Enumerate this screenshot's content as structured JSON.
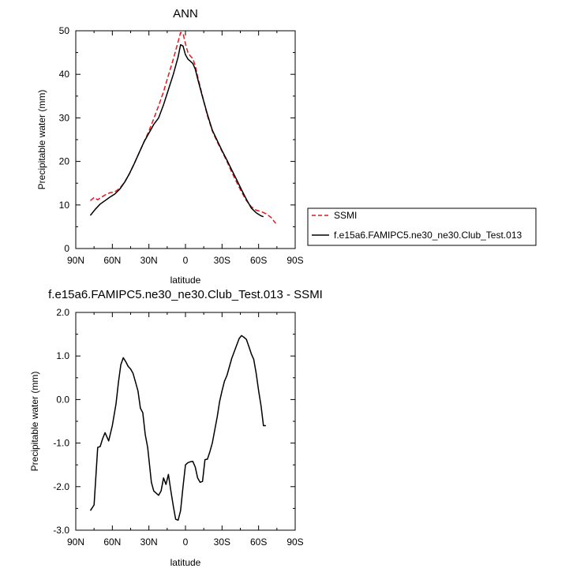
{
  "chart_data": [
    {
      "type": "line",
      "title": "ANN",
      "xlabel": "latitude",
      "ylabel": "Precipitable water (mm)",
      "xlim": [
        -90,
        90
      ],
      "ylim": [
        0,
        50
      ],
      "x_ticks": [
        -90,
        -60,
        -30,
        0,
        30,
        60,
        90
      ],
      "x_tick_labels": [
        "90N",
        "60N",
        "30N",
        "0",
        "30S",
        "60S",
        "90S"
      ],
      "y_ticks": [
        0,
        10,
        20,
        30,
        40,
        50
      ],
      "y_tick_labels": [
        "0",
        "10",
        "20",
        "30",
        "40",
        "50"
      ],
      "grid": false,
      "legend_position": "right",
      "series": [
        {
          "name": "SSMI",
          "color": "#e8161c",
          "dash": "dashed",
          "x": [
            -78,
            -75,
            -72,
            -70,
            -66,
            -62,
            -58,
            -54,
            -50,
            -46,
            -42,
            -38,
            -34,
            -30,
            -26,
            -22,
            -18,
            -14,
            -10,
            -6,
            -4,
            -2,
            0,
            2,
            4,
            6,
            8,
            10,
            14,
            18,
            22,
            26,
            30,
            34,
            38,
            42,
            46,
            50,
            54,
            58,
            62,
            66,
            70,
            74
          ],
          "y": [
            11.0,
            11.7,
            11.2,
            11.6,
            12.3,
            12.8,
            13.0,
            13.8,
            15.2,
            17.2,
            19.5,
            22.0,
            24.5,
            27.0,
            29.8,
            32.8,
            36.0,
            39.8,
            43.5,
            47.5,
            49.6,
            49.4,
            47.0,
            45.0,
            44.2,
            43.6,
            42.0,
            39.5,
            35.0,
            30.5,
            27.0,
            24.5,
            22.3,
            20.0,
            17.5,
            15.2,
            13.0,
            11.0,
            9.6,
            8.8,
            8.5,
            8.0,
            7.2,
            5.8
          ]
        },
        {
          "name": "f.e15a6.FAMIPC5.ne30_ne30.Club_Test.013",
          "color": "#000000",
          "dash": "solid",
          "x": [
            -78,
            -74,
            -70,
            -66,
            -62,
            -58,
            -54,
            -50,
            -46,
            -42,
            -38,
            -34,
            -30,
            -26,
            -22,
            -18,
            -14,
            -10,
            -6,
            -4,
            -2,
            0,
            2,
            4,
            6,
            8,
            10,
            14,
            18,
            22,
            26,
            30,
            34,
            38,
            42,
            46,
            50,
            54,
            58,
            62,
            64
          ],
          "y": [
            7.6,
            9.0,
            10.2,
            11.0,
            11.8,
            12.5,
            13.6,
            15.2,
            17.2,
            19.5,
            22.0,
            24.5,
            26.5,
            28.5,
            30.0,
            33.0,
            36.5,
            40.0,
            44.0,
            46.8,
            46.5,
            44.5,
            43.5,
            43.0,
            42.5,
            41.2,
            39.0,
            34.8,
            30.8,
            27.2,
            24.8,
            22.5,
            20.3,
            18.0,
            15.8,
            13.5,
            11.3,
            9.3,
            8.2,
            7.5,
            7.3
          ]
        }
      ]
    },
    {
      "type": "line",
      "title": "f.e15a6.FAMIPC5.ne30_ne30.Club_Test.013 - SSMI",
      "xlabel": "latitude",
      "ylabel": "Precipitable water (mm)",
      "xlim": [
        -90,
        90
      ],
      "ylim": [
        -3.0,
        2.0
      ],
      "x_ticks": [
        -90,
        -60,
        -30,
        0,
        30,
        60,
        90
      ],
      "x_tick_labels": [
        "90N",
        "60N",
        "30N",
        "0",
        "30S",
        "60S",
        "90S"
      ],
      "y_ticks": [
        -3.0,
        -2.0,
        -1.0,
        0.0,
        1.0,
        2.0
      ],
      "y_tick_labels": [
        "-3.0",
        "-2.0",
        "-1.0",
        "0.0",
        "1.0",
        "2.0"
      ],
      "grid": false,
      "series": [
        {
          "color": "#000000",
          "dash": "solid",
          "x": [
            -78,
            -75,
            -72,
            -70,
            -68,
            -66,
            -63,
            -60,
            -57,
            -55,
            -53,
            -51,
            -49,
            -47,
            -45,
            -43,
            -41,
            -39,
            -37,
            -35,
            -33,
            -31,
            -28,
            -26,
            -24,
            -22,
            -20,
            -18,
            -16,
            -14,
            -12,
            -10,
            -8,
            -6,
            -4,
            -2,
            0,
            2,
            4,
            6,
            8,
            10,
            12,
            14,
            16,
            18,
            20,
            22,
            24,
            26,
            28,
            30,
            32,
            34,
            36,
            38,
            40,
            42,
            44,
            46,
            48,
            50,
            52,
            54,
            56,
            58,
            60,
            62,
            64,
            66
          ],
          "y": [
            -2.55,
            -2.42,
            -1.1,
            -1.08,
            -0.9,
            -0.76,
            -0.95,
            -0.6,
            -0.1,
            0.4,
            0.8,
            0.96,
            0.87,
            0.76,
            0.7,
            0.6,
            0.4,
            0.2,
            -0.2,
            -0.3,
            -0.8,
            -1.1,
            -1.9,
            -2.1,
            -2.15,
            -2.2,
            -2.1,
            -1.8,
            -1.95,
            -1.72,
            -2.1,
            -2.45,
            -2.75,
            -2.77,
            -2.55,
            -2.0,
            -1.5,
            -1.45,
            -1.43,
            -1.42,
            -1.55,
            -1.8,
            -1.9,
            -1.88,
            -1.38,
            -1.37,
            -1.2,
            -1.0,
            -0.7,
            -0.4,
            -0.05,
            0.2,
            0.42,
            0.55,
            0.75,
            0.95,
            1.1,
            1.25,
            1.4,
            1.47,
            1.43,
            1.38,
            1.22,
            1.05,
            0.92,
            0.6,
            0.2,
            -0.15,
            -0.6,
            -0.6
          ]
        }
      ]
    }
  ]
}
